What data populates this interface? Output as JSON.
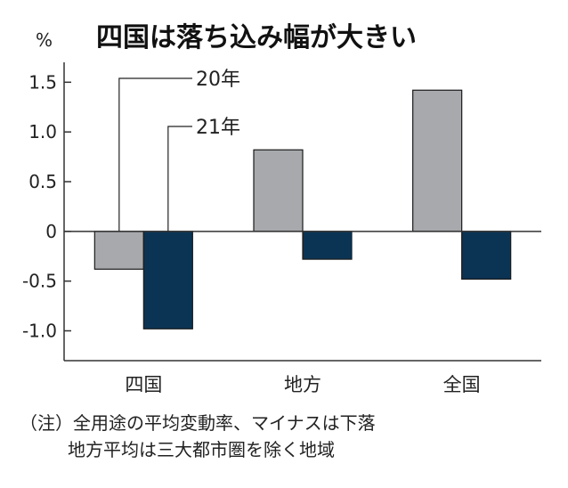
{
  "chart_data": {
    "type": "bar",
    "title": "四国は落ち込み幅が大きい",
    "unit": "%",
    "categories": [
      "四国",
      "地方",
      "全国"
    ],
    "series": [
      {
        "name": "20年",
        "values": [
          -0.38,
          0.82,
          1.42
        ]
      },
      {
        "name": "21年",
        "values": [
          -0.98,
          -0.28,
          -0.48
        ]
      }
    ],
    "ylim": [
      -1.3,
      1.7
    ],
    "yticks": [
      1.5,
      1.0,
      0.5,
      0,
      -0.5,
      -1.0
    ],
    "ytick_labels": [
      "1.5",
      "1.0",
      "0.5",
      "0",
      "-0.5",
      "-1.0"
    ],
    "grid": false,
    "legend_placement": "top-left, leader lines to first bars"
  },
  "colors": {
    "series_20": "#a7a9ac",
    "series_21": "#0b3454",
    "axis": "#333333"
  },
  "notes": {
    "line1": "（注）全用途の平均変動率、マイナスは下落",
    "line2": "地方平均は三大都市圏を除く地域"
  }
}
